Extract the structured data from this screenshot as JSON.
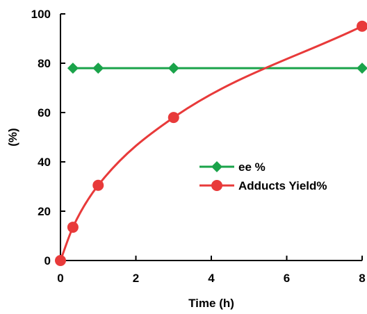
{
  "chart_data": {
    "type": "line",
    "title": "",
    "xlabel": "Time (h)",
    "ylabel": "(%)",
    "xlim": [
      0,
      8
    ],
    "ylim": [
      0,
      100
    ],
    "x_ticks": [
      0,
      2,
      4,
      6,
      8
    ],
    "y_ticks": [
      0,
      20,
      40,
      60,
      80,
      100
    ],
    "x_tick_labels": [
      "0",
      "2",
      "4",
      "6",
      "8"
    ],
    "y_tick_labels": [
      "0",
      "20",
      "40",
      "60",
      "80",
      "100"
    ],
    "grid": false,
    "legend_position": "center-right",
    "series": [
      {
        "name": "ee %",
        "color": "#1aa34a",
        "marker": "diamond",
        "smooth": false,
        "x": [
          0.33,
          1,
          3,
          8
        ],
        "y": [
          78,
          78,
          78,
          78
        ]
      },
      {
        "name": "Adducts Yield%",
        "color": "#e83a3a",
        "marker": "circle",
        "smooth": true,
        "x": [
          0,
          0.33,
          1,
          3,
          8
        ],
        "y": [
          0,
          13.5,
          30.5,
          58,
          95
        ]
      }
    ]
  }
}
